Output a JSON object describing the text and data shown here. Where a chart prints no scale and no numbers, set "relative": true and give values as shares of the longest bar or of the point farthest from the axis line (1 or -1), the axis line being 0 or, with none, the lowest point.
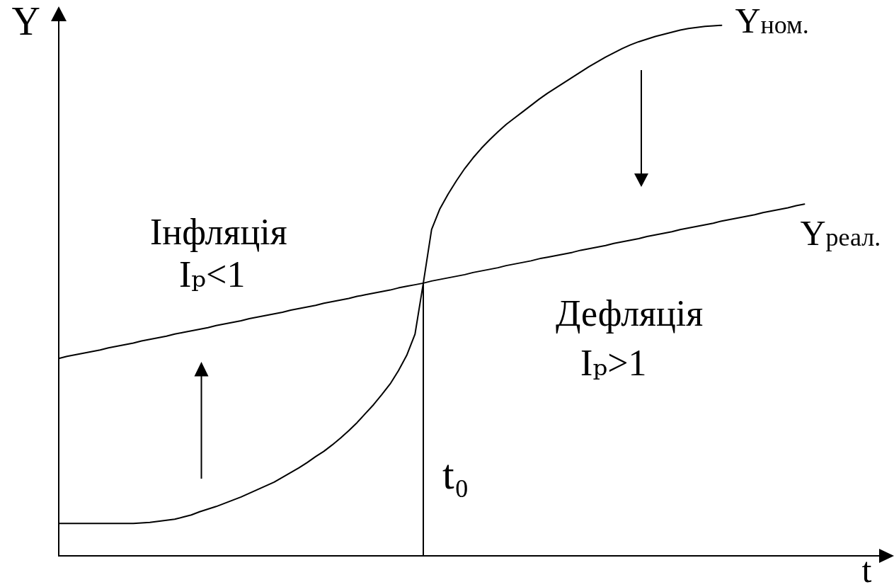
{
  "chart_data": {
    "type": "line",
    "relative": true,
    "xlabel": "t",
    "ylabel": "Y",
    "categories": [
      null,
      null,
      null,
      null,
      null,
      null,
      null,
      null,
      null,
      null,
      null,
      null,
      null,
      null,
      null,
      null,
      null,
      null,
      null,
      null,
      null,
      null,
      null,
      null,
      null,
      null,
      null,
      null,
      null,
      null,
      null,
      null,
      null,
      null,
      null,
      null,
      null,
      null,
      null,
      null,
      null,
      null,
      null,
      null,
      null,
      null,
      null,
      null,
      null,
      null,
      null,
      null,
      null,
      null,
      null,
      null,
      null,
      null,
      null,
      null,
      null,
      null,
      null,
      null,
      null,
      null,
      null,
      null,
      null,
      null,
      null,
      null,
      null,
      null,
      null,
      null,
      null,
      null,
      null,
      null,
      null,
      null,
      null,
      null,
      null,
      null,
      null,
      null,
      null,
      null,
      null,
      null,
      null,
      null,
      null,
      null,
      null,
      null,
      null,
      null,
      null
    ],
    "series": [
      {
        "name": "Y$_{ном.}$",
        "color": "#000000",
        "values": [
          0.061,
          0.061,
          0.061,
          0.061,
          0.061,
          0.061,
          0.061,
          0.061,
          0.061,
          0.061,
          0.062,
          0.063,
          0.065,
          0.067,
          0.069,
          0.073,
          0.077,
          0.083,
          0.088,
          0.093,
          0.099,
          0.105,
          0.111,
          0.118,
          0.125,
          0.132,
          0.139,
          0.148,
          0.157,
          0.166,
          0.176,
          0.187,
          0.197,
          0.209,
          0.222,
          0.236,
          0.251,
          0.268,
          0.285,
          0.304,
          0.324,
          0.349,
          0.378,
          0.418,
          0.514,
          0.615,
          0.654,
          0.682,
          0.707,
          0.73,
          0.75,
          0.768,
          0.784,
          0.799,
          0.813,
          0.825,
          0.837,
          0.849,
          0.861,
          0.872,
          0.882,
          0.892,
          0.902,
          0.912,
          0.922,
          0.931,
          0.94,
          0.948,
          0.956,
          0.963,
          0.969,
          0.974,
          0.979,
          0.983,
          0.987,
          0.991,
          0.994,
          0.996,
          0.998,
          0.999,
          1,
          null,
          null,
          null,
          null,
          null,
          null,
          null,
          null,
          null,
          null,
          null,
          null,
          null,
          null,
          null,
          null,
          null,
          null,
          null,
          null
        ]
      },
      {
        "name": "Y$_{реал.}$",
        "color": "#000000",
        "values": [
          0.372,
          0.376,
          0.379,
          0.382,
          0.385,
          0.388,
          0.392,
          0.395,
          0.398,
          0.401,
          0.405,
          0.408,
          0.411,
          0.414,
          0.418,
          0.421,
          0.424,
          0.427,
          0.43,
          0.434,
          0.437,
          0.44,
          0.443,
          0.447,
          0.45,
          0.453,
          0.456,
          0.459,
          0.463,
          0.466,
          0.469,
          0.472,
          0.476,
          0.479,
          0.482,
          0.485,
          0.489,
          0.492,
          0.495,
          0.498,
          0.501,
          0.505,
          0.508,
          0.511,
          0.514,
          0.518,
          0.521,
          0.524,
          0.527,
          0.53,
          0.534,
          0.537,
          0.54,
          0.543,
          0.547,
          0.55,
          0.553,
          0.556,
          0.56,
          0.563,
          0.566,
          0.569,
          0.572,
          0.576,
          0.579,
          0.582,
          0.585,
          0.589,
          0.592,
          0.595,
          0.598,
          0.602,
          0.605,
          0.608,
          0.611,
          0.615,
          0.618,
          0.621,
          0.624,
          0.627,
          0.631,
          0.634,
          0.637,
          0.64,
          0.643,
          0.647,
          0.65,
          0.653,
          0.656,
          0.66,
          0.663,
          null,
          null,
          null,
          null,
          null,
          null,
          null,
          null,
          null,
          null
        ]
      }
    ],
    "annotations": [
      "Інфляція",
      "Iₚ<1",
      "Дефляція",
      "Iₚ>1",
      "t₀"
    ]
  }
}
